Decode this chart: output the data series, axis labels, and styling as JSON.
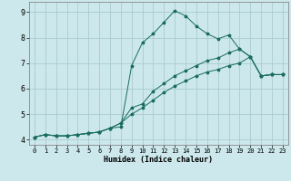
{
  "title": "",
  "xlabel": "Humidex (Indice chaleur)",
  "ylabel": "",
  "bg_color": "#cce8ec",
  "grid_color": "#aacccc",
  "line_color": "#1a6b60",
  "xlim": [
    -0.5,
    23.5
  ],
  "ylim": [
    3.8,
    9.4
  ],
  "xticks": [
    0,
    1,
    2,
    3,
    4,
    5,
    6,
    7,
    8,
    9,
    10,
    11,
    12,
    13,
    14,
    15,
    16,
    17,
    18,
    19,
    20,
    21,
    22,
    23
  ],
  "yticks": [
    4,
    5,
    6,
    7,
    8,
    9
  ],
  "series": [
    {
      "x": [
        0,
        1,
        2,
        3,
        4,
        5,
        6,
        7,
        8,
        9,
        10,
        11,
        12,
        13,
        14,
        15,
        16,
        17,
        18,
        19,
        20,
        21,
        22,
        23
      ],
      "y": [
        4.1,
        4.2,
        4.15,
        4.15,
        4.2,
        4.25,
        4.3,
        4.45,
        4.5,
        6.9,
        7.8,
        8.15,
        8.6,
        9.05,
        8.85,
        8.45,
        8.15,
        7.95,
        8.1,
        7.55,
        7.25,
        6.5,
        6.55,
        6.55
      ]
    },
    {
      "x": [
        0,
        1,
        2,
        3,
        4,
        5,
        6,
        7,
        8,
        9,
        10,
        11,
        12,
        13,
        14,
        15,
        16,
        17,
        18,
        19,
        20,
        21,
        22,
        23
      ],
      "y": [
        4.1,
        4.2,
        4.15,
        4.15,
        4.2,
        4.25,
        4.3,
        4.45,
        4.65,
        5.25,
        5.4,
        5.9,
        6.2,
        6.5,
        6.7,
        6.9,
        7.1,
        7.2,
        7.4,
        7.55,
        7.25,
        6.5,
        6.55,
        6.55
      ]
    },
    {
      "x": [
        0,
        1,
        2,
        3,
        4,
        5,
        6,
        7,
        8,
        9,
        10,
        11,
        12,
        13,
        14,
        15,
        16,
        17,
        18,
        19,
        20,
        21,
        22,
        23
      ],
      "y": [
        4.1,
        4.2,
        4.15,
        4.15,
        4.2,
        4.25,
        4.3,
        4.45,
        4.65,
        5.0,
        5.25,
        5.55,
        5.85,
        6.1,
        6.3,
        6.5,
        6.65,
        6.75,
        6.9,
        7.0,
        7.25,
        6.5,
        6.55,
        6.55
      ]
    }
  ]
}
